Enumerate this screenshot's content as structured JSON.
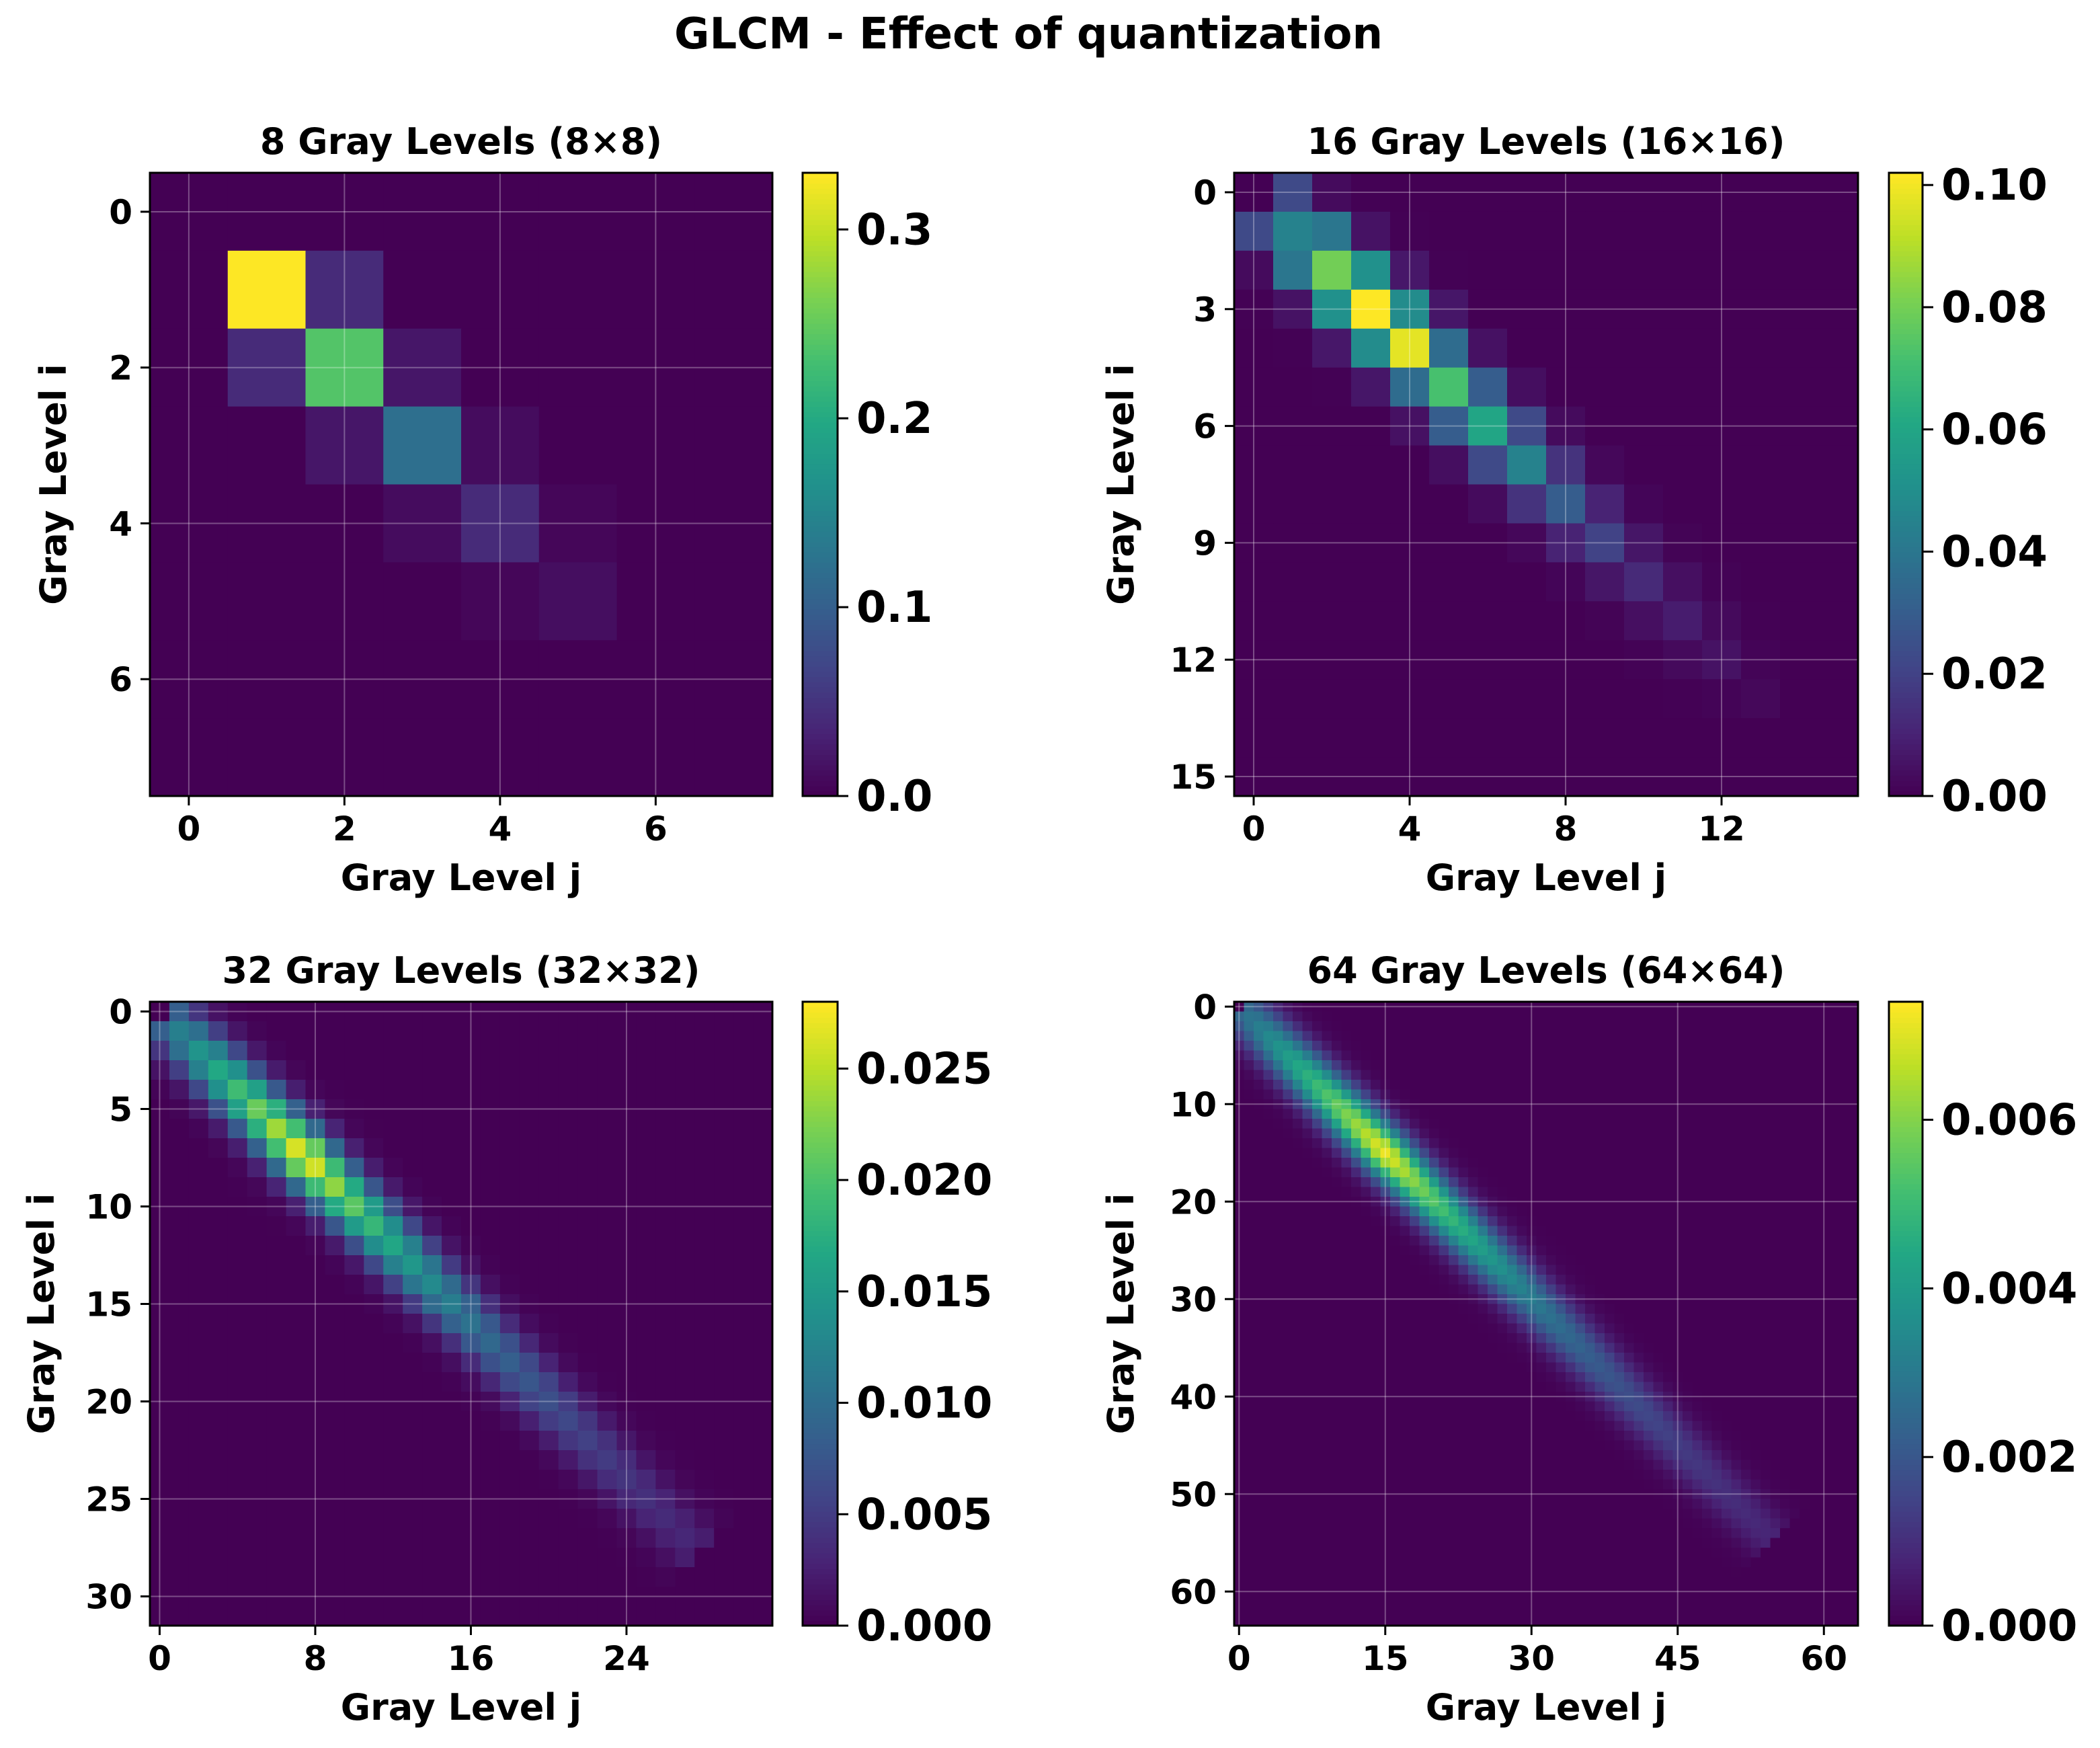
{
  "figure": {
    "suptitle": "GLCM - Effect of quantization"
  },
  "colormap": "viridis",
  "chart_data": [
    {
      "type": "heatmap",
      "title": "8 Gray Levels (8×8)",
      "xlabel": "Gray Level j",
      "ylabel": "Gray Level i",
      "levels": 8,
      "x_ticks": [
        0,
        2,
        4,
        6
      ],
      "y_ticks": [
        0,
        2,
        4,
        6
      ],
      "x_tick_labels": [
        "0",
        "2",
        "4",
        "6"
      ],
      "y_tick_labels": [
        "0",
        "2",
        "4",
        "6"
      ],
      "colorbar": {
        "vmin": 0,
        "vmax": 0.33,
        "ticks": [
          0.0,
          0.1,
          0.2,
          0.3
        ],
        "tick_labels": [
          "0.0",
          "0.1",
          "0.2",
          "0.3"
        ]
      },
      "diagonal": {
        "center": 1.0,
        "end": 5.0,
        "peak": 0.33,
        "peak_pos": 1.0,
        "width": 0.6,
        "nonzero_min": 0.0,
        "peak_values": [
          0.33,
          0.24,
          0.12,
          0.04,
          0.012
        ]
      },
      "matrix": [
        [
          0,
          0,
          0,
          0,
          0,
          0,
          0,
          0
        ],
        [
          0,
          0.33,
          0.04,
          0,
          0,
          0,
          0,
          0
        ],
        [
          0,
          0.04,
          0.24,
          0.02,
          0,
          0,
          0,
          0
        ],
        [
          0,
          0,
          0.02,
          0.12,
          0.01,
          0,
          0,
          0
        ],
        [
          0,
          0,
          0,
          0.01,
          0.04,
          0.005,
          0,
          0
        ],
        [
          0,
          0,
          0,
          0,
          0.005,
          0.012,
          0,
          0
        ],
        [
          0,
          0,
          0,
          0,
          0,
          0,
          0,
          0
        ],
        [
          0,
          0,
          0,
          0,
          0,
          0,
          0,
          0
        ]
      ]
    },
    {
      "type": "heatmap",
      "title": "16 Gray Levels (16×16)",
      "xlabel": "Gray Level j",
      "ylabel": "Gray Level i",
      "levels": 16,
      "x_ticks": [
        0,
        4,
        8,
        12
      ],
      "y_ticks": [
        0,
        3,
        6,
        9,
        12,
        15
      ],
      "x_tick_labels": [
        "0",
        "4",
        "8",
        "12"
      ],
      "y_tick_labels": [
        "0",
        "3",
        "6",
        "9",
        "12",
        "15"
      ],
      "colorbar": {
        "vmin": 0,
        "vmax": 0.102,
        "ticks": [
          0.0,
          0.02,
          0.04,
          0.06,
          0.08,
          0.1
        ],
        "tick_labels": [
          "0.00",
          "0.02",
          "0.04",
          "0.06",
          "0.08",
          "0.10"
        ]
      },
      "diagonal": {
        "center_start": 1,
        "center_end": 13,
        "peak": 0.102,
        "peak_pos": 3.3,
        "width": 0.85,
        "nonzero_min": 0.0,
        "peak_values": [
          0.045,
          0.08,
          0.102,
          0.098,
          0.072,
          0.06,
          0.045,
          0.03,
          0.02,
          0.012,
          0.008,
          0.005,
          0.002
        ]
      }
    },
    {
      "type": "heatmap",
      "title": "32 Gray Levels (32×32)",
      "xlabel": "Gray Level j",
      "ylabel": "Gray Level i",
      "levels": 32,
      "x_ticks": [
        0,
        8,
        16,
        24
      ],
      "y_ticks": [
        0,
        5,
        10,
        15,
        20,
        25,
        30
      ],
      "x_tick_labels": [
        "0",
        "8",
        "16",
        "24"
      ],
      "y_tick_labels": [
        "0",
        "5",
        "10",
        "15",
        "20",
        "25",
        "30"
      ],
      "colorbar": {
        "vmin": 0,
        "vmax": 0.028,
        "ticks": [
          0.0,
          0.005,
          0.01,
          0.015,
          0.02,
          0.025
        ],
        "tick_labels": [
          "0.000",
          "0.005",
          "0.010",
          "0.015",
          "0.020",
          "0.025"
        ]
      },
      "diagonal": {
        "center_start": 1,
        "center_end": 27,
        "peak": 0.0275,
        "peak_pos": 7.5,
        "width": 1.4,
        "nonzero_min": 0.0
      }
    },
    {
      "type": "heatmap",
      "title": "64 Gray Levels (64×64)",
      "xlabel": "Gray Level j",
      "ylabel": "Gray Level i",
      "levels": 64,
      "x_ticks": [
        0,
        15,
        30,
        45,
        60
      ],
      "y_ticks": [
        0,
        10,
        20,
        30,
        40,
        50,
        60
      ],
      "x_tick_labels": [
        "0",
        "15",
        "30",
        "45",
        "60"
      ],
      "y_tick_labels": [
        "0",
        "10",
        "20",
        "30",
        "40",
        "50",
        "60"
      ],
      "colorbar": {
        "vmin": 0,
        "vmax": 0.0074,
        "ticks": [
          0.0,
          0.002,
          0.004,
          0.006
        ],
        "tick_labels": [
          "0.000",
          "0.002",
          "0.004",
          "0.006"
        ]
      },
      "diagonal": {
        "center_start": 1,
        "center_end": 54,
        "peak": 0.0072,
        "peak_pos": 15,
        "width": 2.4,
        "nonzero_min": 0.0
      }
    }
  ]
}
